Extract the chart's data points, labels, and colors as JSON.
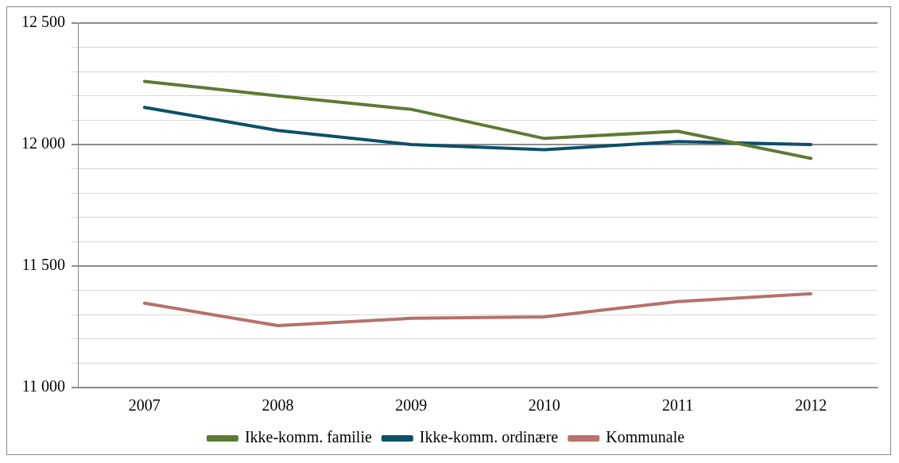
{
  "chart_data": {
    "type": "line",
    "categories": [
      "2007",
      "2008",
      "2009",
      "2010",
      "2011",
      "2012"
    ],
    "series": [
      {
        "name": "Ikke-komm. familie",
        "color": "#5e7a32",
        "values": [
          12260,
          12200,
          12145,
          12025,
          12055,
          11943
        ]
      },
      {
        "name": "Ikke-komm. ordinære",
        "color": "#0b5068",
        "values": [
          12153,
          12058,
          12000,
          11979,
          12012,
          12000
        ]
      },
      {
        "name": "Kommunale",
        "color": "#b5716a",
        "values": [
          11347,
          11255,
          11285,
          11291,
          11354,
          11386
        ]
      }
    ],
    "ylim": [
      11000,
      12500
    ],
    "yticks": [
      {
        "value": 11000,
        "label": "11 000"
      },
      {
        "value": 11100,
        "label": null
      },
      {
        "value": 11200,
        "label": null
      },
      {
        "value": 11300,
        "label": null
      },
      {
        "value": 11400,
        "label": null
      },
      {
        "value": 11500,
        "label": "11 500"
      },
      {
        "value": 11600,
        "label": null
      },
      {
        "value": 11700,
        "label": null
      },
      {
        "value": 11800,
        "label": null
      },
      {
        "value": 11900,
        "label": null
      },
      {
        "value": 12000,
        "label": "12 000"
      },
      {
        "value": 12100,
        "label": null
      },
      {
        "value": 12200,
        "label": null
      },
      {
        "value": 12300,
        "label": null
      },
      {
        "value": 12400,
        "label": null
      },
      {
        "value": 12500,
        "label": "12 500"
      }
    ],
    "grid": "y",
    "legend": "bottom",
    "marker": "none",
    "line_style": "solid"
  }
}
